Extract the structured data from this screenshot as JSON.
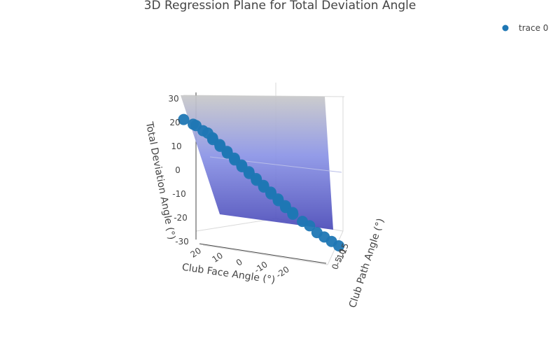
{
  "chart_data": {
    "type": "scatter",
    "title": "3D Regression Plane for Total Deviation Angle",
    "axes": {
      "x": {
        "label": "Club Face Angle (°)",
        "ticks": [
          20,
          10,
          0,
          -10,
          -20
        ]
      },
      "y": {
        "label": "Club Path Angle (°)",
        "ticks": [
          -15,
          -10,
          -5,
          0
        ]
      },
      "z": {
        "label": "Total Deviation Angle (°)",
        "ticks": [
          30,
          20,
          10,
          0,
          -10,
          -20,
          -30
        ]
      }
    },
    "legend": {
      "placement": "top-right",
      "entries": [
        "trace 0"
      ]
    },
    "series": [
      {
        "name": "trace 0",
        "mode": "markers",
        "color": "#1f77b4",
        "points": [
          {
            "x": 20,
            "y": 8,
            "z": 26
          },
          {
            "x": 18,
            "y": 6,
            "z": 24
          },
          {
            "x": 16,
            "y": 7,
            "z": 23
          },
          {
            "x": 15,
            "y": 5,
            "z": 21
          },
          {
            "x": 14,
            "y": 4,
            "z": 20
          },
          {
            "x": 13,
            "y": 3,
            "z": 18
          },
          {
            "x": 12,
            "y": 4,
            "z": 17
          },
          {
            "x": 11,
            "y": 2,
            "z": 15
          },
          {
            "x": 10,
            "y": 3,
            "z": 14
          },
          {
            "x": 9,
            "y": 1,
            "z": 12
          },
          {
            "x": 8,
            "y": 2,
            "z": 11
          },
          {
            "x": 7,
            "y": 0,
            "z": 9
          },
          {
            "x": 6,
            "y": 1,
            "z": 8
          },
          {
            "x": 5,
            "y": -1,
            "z": 6
          },
          {
            "x": 4,
            "y": 0,
            "z": 5
          },
          {
            "x": 3,
            "y": -2,
            "z": 3
          },
          {
            "x": 2,
            "y": -1,
            "z": 2
          },
          {
            "x": 1,
            "y": -3,
            "z": 0
          },
          {
            "x": 0,
            "y": -2,
            "z": -1
          },
          {
            "x": -1,
            "y": -4,
            "z": -3
          },
          {
            "x": -2,
            "y": -3,
            "z": -4
          },
          {
            "x": -3,
            "y": -5,
            "z": -6
          },
          {
            "x": -4,
            "y": -4,
            "z": -7
          },
          {
            "x": -5,
            "y": -6,
            "z": -9
          },
          {
            "x": -6,
            "y": -5,
            "z": -10
          },
          {
            "x": -7,
            "y": -7,
            "z": -12
          },
          {
            "x": -8,
            "y": -6,
            "z": -13
          },
          {
            "x": -9,
            "y": -8,
            "z": -15
          },
          {
            "x": -10,
            "y": -7,
            "z": -16
          },
          {
            "x": -12,
            "y": -9,
            "z": -19
          },
          {
            "x": -14,
            "y": -10,
            "z": -21
          },
          {
            "x": -16,
            "y": -11,
            "z": -24
          },
          {
            "x": -18,
            "y": -12,
            "z": -26
          },
          {
            "x": -20,
            "y": -13,
            "z": -28
          },
          {
            "x": -22,
            "y": -14,
            "z": -30
          }
        ]
      }
    ],
    "surface": {
      "name": "regression-plane",
      "colorscale": [
        "#c8c8c8",
        "#8a93e6",
        "#4a4ab8"
      ]
    }
  }
}
